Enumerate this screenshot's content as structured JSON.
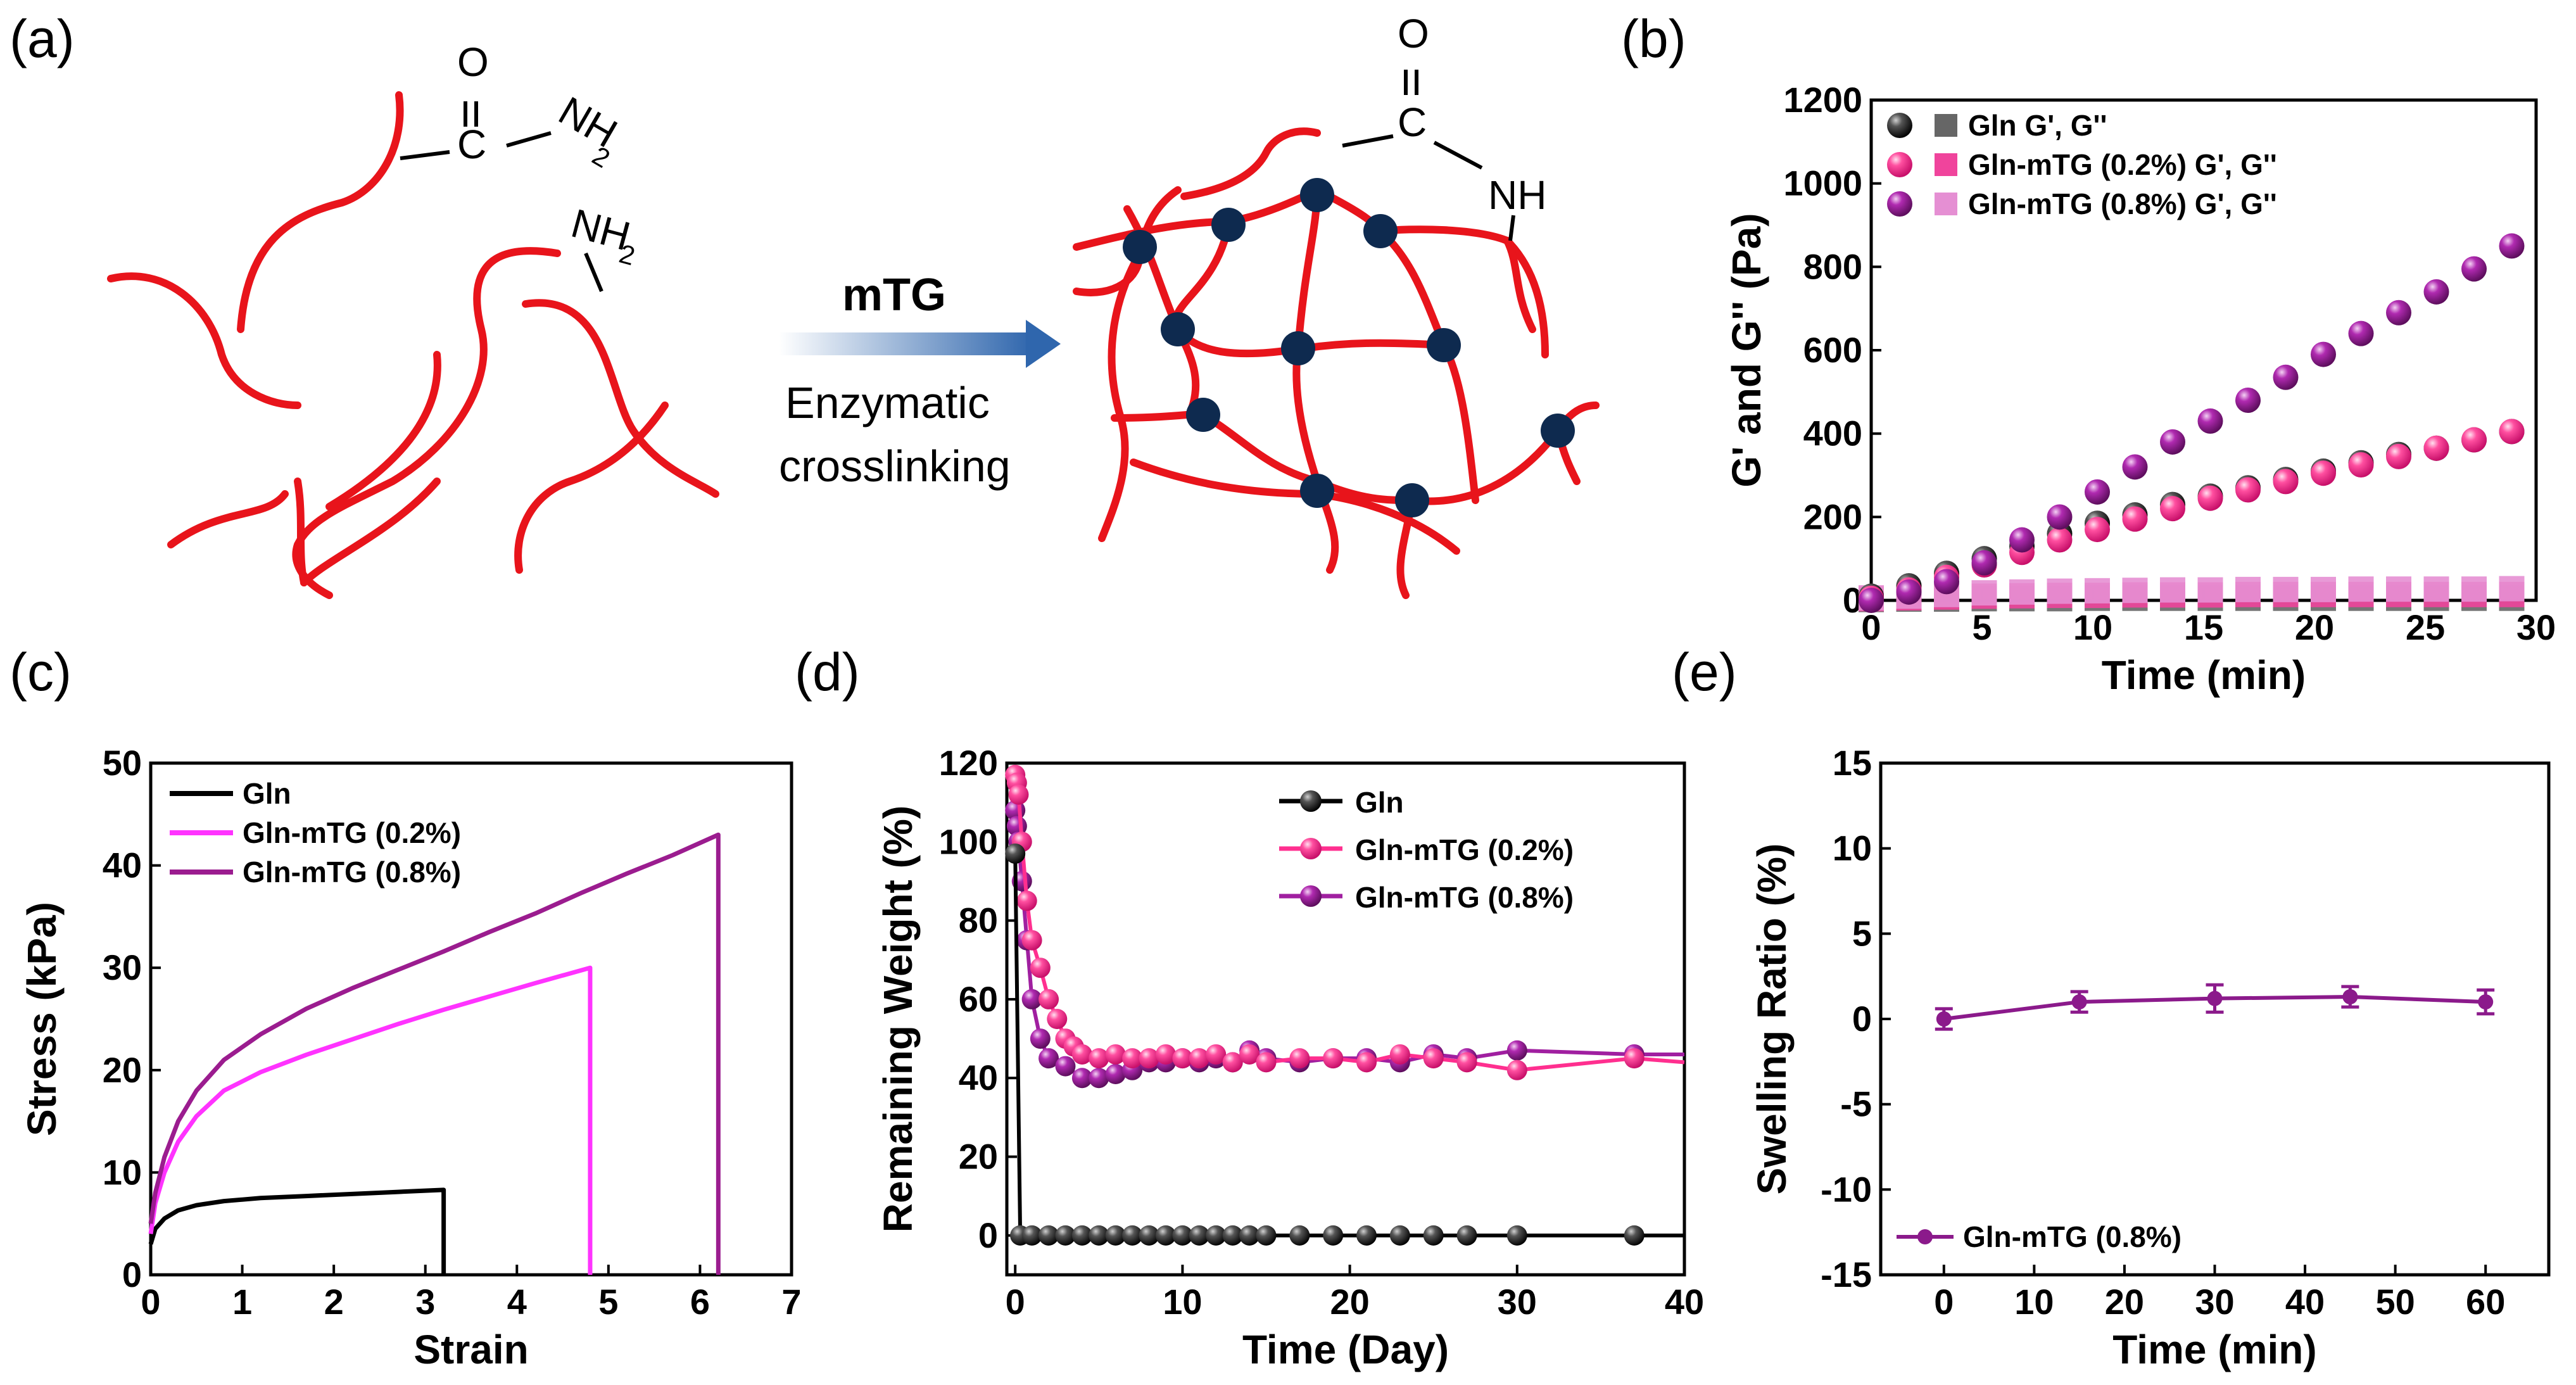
{
  "figure": {
    "panel_letters": [
      "(a)",
      "(b)",
      "(c)",
      "(d)",
      "(e)"
    ],
    "schematic": {
      "carbonyl_o": "O",
      "carbonyl_c": "C",
      "amine_before": "NH",
      "amine_sub": "2",
      "amine_free": "NH",
      "amine_free_sub": "2",
      "amide_after": "NH",
      "carbonyl_o_after": "O",
      "carbonyl_c_after": "C",
      "arrow_top_label": "mTG",
      "arrow_bottom_line1": "Enzymatic",
      "arrow_bottom_line2": "crosslinking",
      "colors": {
        "chain": "#e8141b",
        "node": "#0e2a4f",
        "arrow": "#3a74b8"
      }
    }
  },
  "chart_data": [
    {
      "id": "b",
      "type": "scatter",
      "xlabel": "Time (min)",
      "ylabel": "G' and G'' (Pa)",
      "xlim": [
        0,
        30
      ],
      "ylim": [
        0,
        1200
      ],
      "xticks": [
        "0",
        "5",
        "10",
        "15",
        "20",
        "25",
        "30"
      ],
      "yticks": [
        "0",
        "200",
        "400",
        "600",
        "800",
        "1000",
        "1200"
      ],
      "legend_position": "top-left",
      "legend": [
        "Gln G', G''",
        "Gln-mTG (0.2%) G', G''",
        "Gln-mTG (0.8%) G', G''"
      ],
      "x": [
        0,
        1.7,
        3.4,
        5.1,
        6.8,
        8.5,
        10.2,
        11.9,
        13.6,
        15.3,
        17,
        18.7,
        20.4,
        22.1,
        23.8,
        25.5,
        27.2,
        28.9
      ],
      "series": [
        {
          "name": "Gln G'",
          "marker": "sphere",
          "color": "#222222",
          "values": [
            10,
            35,
            65,
            100,
            130,
            160,
            185,
            205,
            230,
            250,
            270,
            290,
            310,
            330,
            350,
            365,
            385,
            405
          ]
        },
        {
          "name": "Gln-mTG (0.2%) G'",
          "marker": "sphere",
          "color": "#ff3d8f",
          "values": [
            5,
            25,
            55,
            85,
            115,
            145,
            170,
            195,
            220,
            245,
            265,
            285,
            305,
            325,
            345,
            365,
            385,
            405
          ]
        },
        {
          "name": "Gln-mTG (0.8%) G'",
          "marker": "sphere",
          "color": "#a01fa0",
          "values": [
            0,
            20,
            45,
            90,
            145,
            200,
            260,
            320,
            380,
            430,
            480,
            535,
            590,
            640,
            690,
            740,
            795,
            850
          ]
        },
        {
          "name": "Gln G''",
          "marker": "square",
          "color": "#666666",
          "values": [
            2,
            3,
            3,
            4,
            4,
            4,
            5,
            5,
            5,
            5,
            5,
            5,
            5,
            5,
            5,
            5,
            5,
            5
          ]
        },
        {
          "name": "Gln-mTG (0.2%) G''",
          "marker": "square",
          "color": "#f0449c",
          "values": [
            4,
            6,
            8,
            10,
            11,
            12,
            12,
            13,
            13,
            13,
            14,
            14,
            14,
            14,
            14,
            14,
            14,
            14
          ]
        },
        {
          "name": "Gln-mTG (0.8%) G''",
          "marker": "square",
          "color": "#e58fd3",
          "values": [
            6,
            10,
            14,
            18,
            20,
            22,
            23,
            24,
            25,
            25,
            26,
            26,
            26,
            27,
            27,
            27,
            27,
            28
          ]
        }
      ]
    },
    {
      "id": "c",
      "type": "line",
      "xlabel": "Strain",
      "ylabel": "Stress (kPa)",
      "xlim": [
        0,
        7
      ],
      "ylim": [
        0,
        50
      ],
      "xticks": [
        "0",
        "1",
        "2",
        "3",
        "4",
        "5",
        "6",
        "7"
      ],
      "yticks": [
        "0",
        "10",
        "20",
        "30",
        "40",
        "50"
      ],
      "legend_position": "top-left",
      "legend": [
        "Gln",
        "Gln-mTG (0.2%)",
        "Gln-mTG (0.8%)"
      ],
      "series": [
        {
          "name": "Gln",
          "color": "#000000",
          "break_strain": 3.2,
          "x": [
            0,
            0.05,
            0.15,
            0.3,
            0.5,
            0.8,
            1.2,
            1.7,
            2.2,
            2.7,
            3.2
          ],
          "values": [
            3,
            4.5,
            5.5,
            6.3,
            6.8,
            7.2,
            7.5,
            7.7,
            7.9,
            8.1,
            8.3
          ]
        },
        {
          "name": "Gln-mTG (0.2%)",
          "color": "#ff33ff",
          "break_strain": 4.8,
          "x": [
            0,
            0.05,
            0.15,
            0.3,
            0.5,
            0.8,
            1.2,
            1.7,
            2.2,
            2.7,
            3.2,
            3.7,
            4.2,
            4.8
          ],
          "values": [
            4,
            7,
            10,
            13,
            15.5,
            18,
            19.8,
            21.5,
            23,
            24.5,
            25.9,
            27.2,
            28.5,
            30
          ]
        },
        {
          "name": "Gln-mTG (0.8%)",
          "color": "#9b1c8f",
          "break_strain": 6.2,
          "x": [
            0,
            0.05,
            0.15,
            0.3,
            0.5,
            0.8,
            1.2,
            1.7,
            2.2,
            2.7,
            3.2,
            3.7,
            4.2,
            4.7,
            5.2,
            5.7,
            6.2
          ],
          "values": [
            5,
            8,
            11.5,
            15,
            18,
            21,
            23.5,
            26,
            28,
            29.8,
            31.6,
            33.5,
            35.3,
            37.3,
            39.2,
            41,
            43
          ]
        }
      ]
    },
    {
      "id": "d",
      "type": "line",
      "xlabel": "Time (Day)",
      "ylabel": "Remaining Weight (%)",
      "xlim": [
        -0.5,
        40
      ],
      "ylim": [
        -10,
        120
      ],
      "xticks": [
        "0",
        "10",
        "20",
        "30",
        "40"
      ],
      "yticks": [
        "0",
        "20",
        "40",
        "60",
        "80",
        "100",
        "120"
      ],
      "legend_position": "top-right",
      "legend": [
        "Gln",
        "Gln-mTG (0.2%)",
        "Gln-mTG (0.8%)"
      ],
      "series": [
        {
          "name": "Gln",
          "color": "#000000",
          "x": [
            0,
            0.3,
            1,
            2,
            3,
            4,
            5,
            6,
            7,
            8,
            9,
            10,
            11,
            12,
            13,
            14,
            15,
            17,
            19,
            21,
            23,
            25,
            27,
            30,
            37,
            40
          ],
          "values": [
            97,
            0,
            0,
            0,
            0,
            0,
            0,
            0,
            0,
            0,
            0,
            0,
            0,
            0,
            0,
            0,
            0,
            0,
            0,
            0,
            0,
            0,
            0,
            0,
            0,
            0
          ]
        },
        {
          "name": "Gln-mTG (0.2%)",
          "color": "#ff2f8f",
          "x": [
            0,
            0.1,
            0.2,
            0.4,
            0.7,
            1,
            1.5,
            2,
            2.5,
            3,
            3.5,
            4,
            5,
            6,
            7,
            8,
            9,
            10,
            11,
            12,
            13,
            14,
            15,
            17,
            19,
            21,
            23,
            25,
            27,
            30,
            37,
            40
          ],
          "values": [
            117,
            115,
            112,
            100,
            85,
            75,
            68,
            60,
            55,
            50,
            48,
            46,
            45,
            46,
            45,
            45,
            46,
            45,
            45,
            46,
            44,
            46,
            44,
            45,
            45,
            44,
            46,
            45,
            44,
            42,
            45,
            44
          ]
        },
        {
          "name": "Gln-mTG (0.8%)",
          "color": "#a01fa0",
          "x": [
            0,
            0.1,
            0.2,
            0.4,
            0.7,
            1,
            1.5,
            2,
            3,
            4,
            5,
            6,
            7,
            8,
            9,
            10,
            11,
            12,
            13,
            14,
            15,
            17,
            19,
            21,
            23,
            25,
            27,
            30,
            37,
            40
          ],
          "values": [
            108,
            104,
            100,
            90,
            75,
            60,
            50,
            45,
            43,
            40,
            40,
            41,
            42,
            44,
            44,
            45,
            44,
            45,
            44,
            47,
            45,
            44,
            45,
            45,
            44,
            46,
            45,
            47,
            46,
            46
          ]
        }
      ]
    },
    {
      "id": "e",
      "type": "line",
      "xlabel": "Time (min)",
      "ylabel": "Swelling Ratio (%)",
      "xlim": [
        -7,
        67
      ],
      "ylim": [
        -15,
        15
      ],
      "xticks": [
        "0",
        "10",
        "20",
        "30",
        "40",
        "50",
        "60"
      ],
      "yticks": [
        "-15",
        "-10",
        "-5",
        "0",
        "5",
        "10",
        "15"
      ],
      "legend_position": "bottom-left",
      "legend": [
        "Gln-mTG (0.8%)"
      ],
      "series": [
        {
          "name": "Gln-mTG (0.8%)",
          "color": "#8b1a8b",
          "x": [
            0,
            15,
            30,
            45,
            60
          ],
          "values": [
            0,
            1,
            1.2,
            1.3,
            1
          ],
          "errors": [
            0.6,
            0.6,
            0.8,
            0.6,
            0.7
          ]
        }
      ]
    }
  ]
}
